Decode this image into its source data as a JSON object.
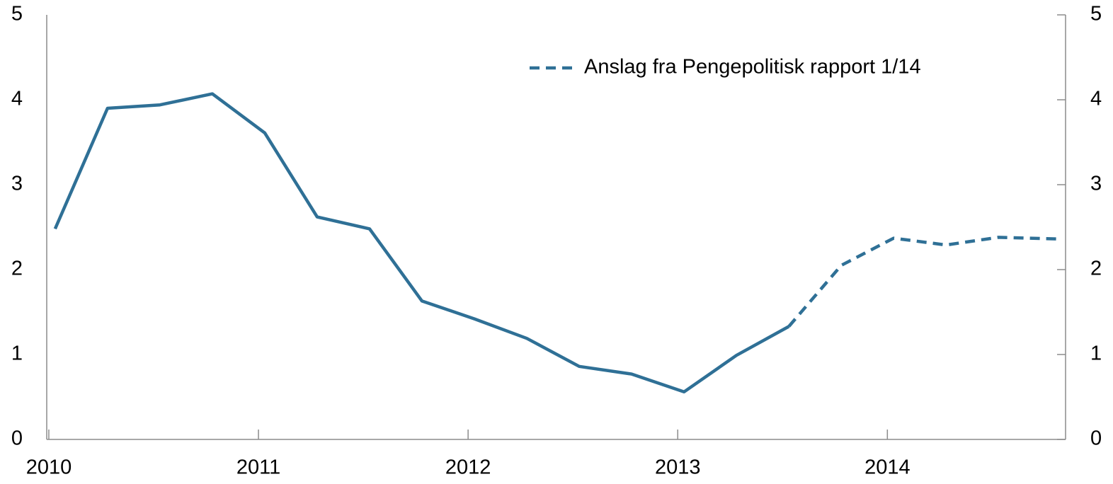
{
  "chart_data": {
    "type": "line",
    "x": [
      2010.03,
      2010.28,
      2010.53,
      2010.78,
      2011.03,
      2011.28,
      2011.53,
      2011.78,
      2012.03,
      2012.28,
      2012.53,
      2012.78,
      2013.03,
      2013.28,
      2013.53,
      2013.78,
      2014.03,
      2014.28,
      2014.53,
      2014.82
    ],
    "series": [
      {
        "color": "#2f7096",
        "dash": false,
        "values": [
          2.48,
          3.9,
          3.94,
          4.07,
          3.61,
          2.62,
          2.48,
          1.63,
          1.42,
          1.19,
          0.86,
          0.77,
          0.56,
          0.99,
          1.33,
          null,
          null,
          null,
          null,
          null
        ]
      },
      {
        "name": "Anslag fra Pengepolitisk rapport 1/14",
        "color": "#2f7096",
        "dash": true,
        "values": [
          null,
          null,
          null,
          null,
          null,
          null,
          null,
          null,
          null,
          null,
          null,
          null,
          null,
          null,
          1.33,
          2.05,
          2.37,
          2.29,
          2.38,
          2.36
        ]
      }
    ],
    "xlim": [
      2009.99,
      2014.85
    ],
    "xticks": [
      2010,
      2011,
      2012,
      2013,
      2014
    ],
    "ylim": [
      0,
      5
    ],
    "yticks": [
      0,
      1,
      2,
      3,
      4,
      5
    ],
    "y2lim": [
      0,
      5
    ],
    "y2ticks": [
      0,
      1,
      2,
      3,
      4,
      5
    ],
    "legend": "top right"
  }
}
